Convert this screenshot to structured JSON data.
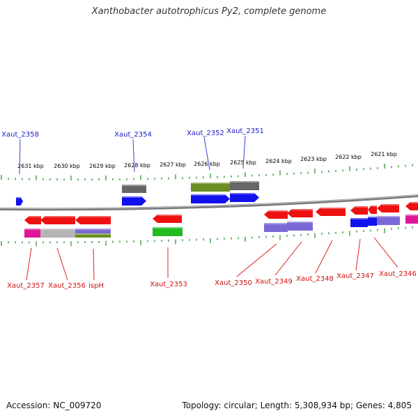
{
  "title": "Xanthobacter autotrophicus Py2, complete genome",
  "footer": {
    "accession": "Accession: NC_009720",
    "summary": "Topology: circular; Length: 5,308,934 bp; Genes: 4,805"
  },
  "colors": {
    "backbone": "#7a7a7a",
    "tick": "#1f8a1f",
    "label_top": "#1a1acc",
    "label_bottom": "#cc1111",
    "leader_top": "#3344cc",
    "leader_bottom": "#dd2222"
  },
  "scale": {
    "unit": "kbp",
    "labels": [
      "2631 kbp",
      "2630 kbp",
      "2629 kbp",
      "2628 kbp",
      "2627 kbp",
      "2626 kbp",
      "2625 kbp",
      "2624 kbp",
      "2623 kbp",
      "2622 kbp",
      "2621 kbp"
    ]
  },
  "genes_top": [
    "Xaut_2358",
    "Xaut_2354",
    "Xaut_2352",
    "Xaut_2351"
  ],
  "genes_bottom": [
    "Xaut_2357",
    "Xaut_2356",
    "ispH",
    "Xaut_2353",
    "Xaut_2350",
    "Xaut_2349",
    "Xaut_2348",
    "Xaut_2347",
    "Xaut_2346"
  ]
}
